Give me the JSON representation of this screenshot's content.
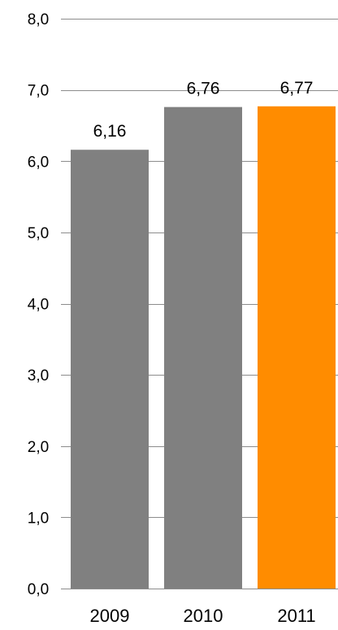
{
  "chart_data": {
    "type": "bar",
    "title": "",
    "xlabel": "",
    "ylabel": "",
    "categories": [
      "2009",
      "2010",
      "2011"
    ],
    "values": [
      6.16,
      6.76,
      6.77
    ],
    "value_labels": [
      "6,16",
      "6,76",
      "6,77"
    ],
    "bar_colors": [
      "#808080",
      "#808080",
      "#ff8c00"
    ],
    "ylim": [
      0,
      8
    ],
    "yticks": [
      0,
      1,
      2,
      3,
      4,
      5,
      6,
      7,
      8
    ],
    "ytick_labels": [
      "0,0",
      "1,0",
      "2,0",
      "3,0",
      "4,0",
      "5,0",
      "6,0",
      "7,0",
      "8,0"
    ],
    "grid": true,
    "legend": "none"
  }
}
